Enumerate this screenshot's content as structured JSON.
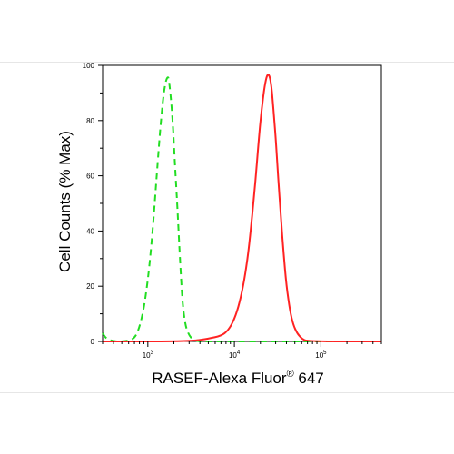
{
  "chart_data": {
    "type": "line",
    "title": "",
    "xlabel_main": "RASEF-Alexa Fluor",
    "xlabel_sup": "®",
    "xlabel_tail": " 647",
    "ylabel": "Cell Counts (% Max)",
    "x_scale": "log",
    "xlim": [
      300,
      500000
    ],
    "ylim": [
      0,
      100
    ],
    "x_ticks": [
      {
        "value": 1000,
        "base": "10",
        "exp": "3"
      },
      {
        "value": 10000,
        "base": "10",
        "exp": "4"
      },
      {
        "value": 100000,
        "base": "10",
        "exp": "5"
      }
    ],
    "y_ticks": [
      {
        "value": 0,
        "label": "0"
      },
      {
        "value": 20,
        "label": "20"
      },
      {
        "value": 40,
        "label": "40"
      },
      {
        "value": 60,
        "label": "60"
      },
      {
        "value": 80,
        "label": "80"
      },
      {
        "value": 100,
        "label": "100"
      }
    ],
    "grid": false,
    "series": [
      {
        "color": "#22dd22",
        "dashed": true,
        "points": [
          [
            300,
            3
          ],
          [
            330,
            1
          ],
          [
            400,
            0
          ],
          [
            550,
            0
          ],
          [
            700,
            1
          ],
          [
            800,
            5
          ],
          [
            900,
            12
          ],
          [
            1000,
            22
          ],
          [
            1100,
            35
          ],
          [
            1200,
            50
          ],
          [
            1300,
            65
          ],
          [
            1400,
            78
          ],
          [
            1500,
            88
          ],
          [
            1600,
            94
          ],
          [
            1700,
            96
          ],
          [
            1750,
            95
          ],
          [
            1850,
            88
          ],
          [
            1950,
            78
          ],
          [
            2050,
            65
          ],
          [
            2200,
            48
          ],
          [
            2350,
            30
          ],
          [
            2500,
            15
          ],
          [
            2700,
            6
          ],
          [
            3000,
            2
          ],
          [
            3500,
            0
          ],
          [
            5000,
            0
          ],
          [
            100000,
            0
          ],
          [
            500000,
            0
          ]
        ]
      },
      {
        "color": "#ff2222",
        "dashed": false,
        "points": [
          [
            300,
            0
          ],
          [
            3000,
            0
          ],
          [
            5000,
            1
          ],
          [
            7000,
            2
          ],
          [
            8500,
            4
          ],
          [
            10000,
            8
          ],
          [
            11500,
            14
          ],
          [
            13000,
            22
          ],
          [
            14500,
            32
          ],
          [
            16000,
            45
          ],
          [
            17500,
            58
          ],
          [
            19000,
            72
          ],
          [
            20500,
            83
          ],
          [
            22000,
            91
          ],
          [
            23500,
            96
          ],
          [
            25000,
            97
          ],
          [
            26500,
            94
          ],
          [
            28000,
            86
          ],
          [
            30000,
            74
          ],
          [
            32000,
            60
          ],
          [
            34500,
            45
          ],
          [
            37000,
            32
          ],
          [
            40000,
            20
          ],
          [
            44000,
            11
          ],
          [
            48000,
            6
          ],
          [
            53000,
            3
          ],
          [
            60000,
            1
          ],
          [
            70000,
            0
          ],
          [
            500000,
            0
          ]
        ]
      }
    ]
  }
}
